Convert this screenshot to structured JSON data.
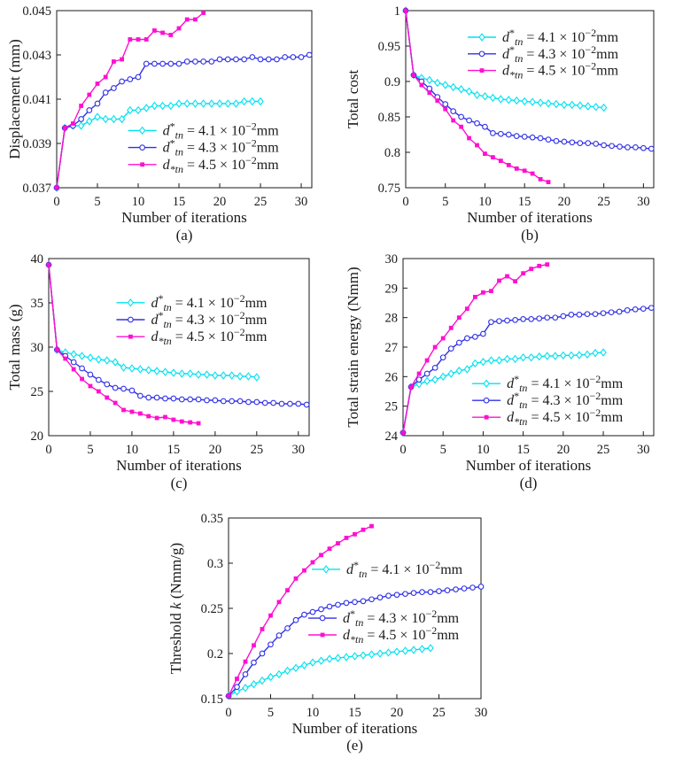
{
  "figure": {
    "background": "#ffffff",
    "axis_color": "#1a1a1a",
    "text_color": "#1a1a1a"
  },
  "series_defs": [
    {
      "name": "d*_tn = 4.1 x 10^-2 mm",
      "label_parts": [
        {
          "t": "d",
          "s": "i"
        },
        {
          "t": "*",
          "s": "sup"
        },
        {
          "t": "tn",
          "s": "sub"
        },
        {
          "t": " = 4.1 × 10"
        },
        {
          "t": "−2",
          "s": "sup"
        },
        {
          "t": "mm"
        }
      ],
      "color": "#00E2F0",
      "marker": "diamond"
    },
    {
      "name": "d*_tn = 4.3 x 10^-2 mm",
      "label_parts": [
        {
          "t": "d",
          "s": "i"
        },
        {
          "t": "*",
          "s": "sup"
        },
        {
          "t": "tn",
          "s": "sub"
        },
        {
          "t": " = 4.3 × 10"
        },
        {
          "t": "−2",
          "s": "sup"
        },
        {
          "t": "mm"
        }
      ],
      "color": "#3030E8",
      "marker": "circle"
    },
    {
      "name": "d*_tn = 4.5 x 10^-2 mm",
      "label_parts": [
        {
          "t": "d",
          "s": "i"
        },
        {
          "t": "*",
          "s": "sub"
        },
        {
          "t": "tn",
          "s": "sub"
        },
        {
          "t": " = 4.5 × 10"
        },
        {
          "t": "−2",
          "s": "sup"
        },
        {
          "t": "mm"
        }
      ],
      "color": "#FF10CF",
      "marker": "square"
    }
  ],
  "chart_data": [
    {
      "type": "line",
      "caption": "(a)",
      "xlabel": "Number of iterations",
      "ylabel": "Displacement (mm)",
      "ylabel_parts": [
        {
          "t": "Displacement (mm)"
        }
      ],
      "xlim": [
        0,
        31.3
      ],
      "ylim": [
        0.037,
        0.045
      ],
      "xticks": [
        {
          "v": 0,
          "l": "0"
        },
        {
          "v": 5,
          "l": "5"
        },
        {
          "v": 10,
          "l": "10"
        },
        {
          "v": 15,
          "l": "15"
        },
        {
          "v": 20,
          "l": "20"
        },
        {
          "v": 25,
          "l": "25"
        },
        {
          "v": 30,
          "l": "30"
        }
      ],
      "yticks": [
        {
          "v": 0.037,
          "l": "0.037"
        },
        {
          "v": 0.039,
          "l": "0.039"
        },
        {
          "v": 0.041,
          "l": "0.041"
        },
        {
          "v": 0.043,
          "l": "0.043"
        },
        {
          "v": 0.045,
          "l": "0.045"
        }
      ],
      "legend": [
        {
          "series": 0,
          "fx": 0.28,
          "fy": 0.677
        },
        {
          "series": 1,
          "fx": 0.28,
          "fy": 0.773
        },
        {
          "series": 2,
          "fx": 0.28,
          "fy": 0.869
        }
      ],
      "series": [
        {
          "def": 0,
          "values": [
            0.037,
            0.0397,
            0.0398,
            0.0398,
            0.04,
            0.0402,
            0.0401,
            0.0401,
            0.0401,
            0.0405,
            0.0405,
            0.0406,
            0.0407,
            0.0407,
            0.0407,
            0.0408,
            0.0408,
            0.0408,
            0.0408,
            0.0408,
            0.0408,
            0.0408,
            0.0408,
            0.0409,
            0.0409,
            0.0409
          ]
        },
        {
          "def": 1,
          "values": [
            0.037,
            0.0397,
            0.0398,
            0.0401,
            0.0405,
            0.0408,
            0.0413,
            0.0415,
            0.0418,
            0.0419,
            0.042,
            0.0426,
            0.0426,
            0.0426,
            0.0426,
            0.0426,
            0.0427,
            0.0427,
            0.0427,
            0.0427,
            0.0428,
            0.0428,
            0.0428,
            0.0428,
            0.0429,
            0.0428,
            0.0428,
            0.0428,
            0.0429,
            0.0429,
            0.0429,
            0.043
          ]
        },
        {
          "def": 2,
          "values": [
            0.037,
            0.0397,
            0.0399,
            0.0407,
            0.0412,
            0.0417,
            0.042,
            0.0427,
            0.0428,
            0.0437,
            0.0437,
            0.0437,
            0.0441,
            0.044,
            0.0439,
            0.0442,
            0.0446,
            0.0446,
            0.0449
          ]
        }
      ]
    },
    {
      "type": "line",
      "caption": "(b)",
      "xlabel": "Number of iterations",
      "ylabel": "Total cost",
      "ylabel_parts": [
        {
          "t": "Total cost"
        }
      ],
      "xlim": [
        0,
        31.3
      ],
      "ylim": [
        0.75,
        1.0
      ],
      "xticks": [
        {
          "v": 0,
          "l": "0"
        },
        {
          "v": 5,
          "l": "5"
        },
        {
          "v": 10,
          "l": "10"
        },
        {
          "v": 15,
          "l": "15"
        },
        {
          "v": 20,
          "l": "20"
        },
        {
          "v": 25,
          "l": "25"
        },
        {
          "v": 30,
          "l": "30"
        }
      ],
      "yticks": [
        {
          "v": 0.75,
          "l": "0.75"
        },
        {
          "v": 0.8,
          "l": "0.8"
        },
        {
          "v": 0.85,
          "l": "0.85"
        },
        {
          "v": 0.9,
          "l": "0.9"
        },
        {
          "v": 0.95,
          "l": "0.95"
        },
        {
          "v": 1.0,
          "l": "1"
        }
      ],
      "legend": [
        {
          "series": 0,
          "fx": 0.25,
          "fy": 0.15
        },
        {
          "series": 1,
          "fx": 0.25,
          "fy": 0.244
        },
        {
          "series": 2,
          "fx": 0.25,
          "fy": 0.338
        }
      ],
      "series": [
        {
          "def": 0,
          "values": [
            1.0,
            0.909,
            0.905,
            0.902,
            0.898,
            0.895,
            0.892,
            0.889,
            0.886,
            0.881,
            0.879,
            0.877,
            0.875,
            0.874,
            0.873,
            0.872,
            0.871,
            0.87,
            0.869,
            0.868,
            0.867,
            0.867,
            0.866,
            0.865,
            0.864,
            0.863
          ]
        },
        {
          "def": 1,
          "values": [
            1.0,
            0.909,
            0.9,
            0.89,
            0.878,
            0.868,
            0.858,
            0.85,
            0.845,
            0.841,
            0.836,
            0.827,
            0.826,
            0.825,
            0.823,
            0.822,
            0.821,
            0.82,
            0.818,
            0.816,
            0.815,
            0.814,
            0.813,
            0.813,
            0.812,
            0.81,
            0.809,
            0.808,
            0.807,
            0.807,
            0.806,
            0.805
          ]
        },
        {
          "def": 2,
          "values": [
            1.0,
            0.909,
            0.895,
            0.884,
            0.873,
            0.861,
            0.845,
            0.836,
            0.82,
            0.81,
            0.798,
            0.793,
            0.788,
            0.782,
            0.777,
            0.774,
            0.77,
            0.762,
            0.758
          ]
        }
      ]
    },
    {
      "type": "line",
      "caption": "(c)",
      "xlabel": "Number of iterations",
      "ylabel": "Total mass (g)",
      "ylabel_parts": [
        {
          "t": "Total mass (g)"
        }
      ],
      "xlim": [
        0,
        31.3
      ],
      "ylim": [
        20,
        40
      ],
      "xticks": [
        {
          "v": 0,
          "l": "0"
        },
        {
          "v": 5,
          "l": "5"
        },
        {
          "v": 10,
          "l": "10"
        },
        {
          "v": 15,
          "l": "15"
        },
        {
          "v": 20,
          "l": "20"
        },
        {
          "v": 25,
          "l": "25"
        },
        {
          "v": 30,
          "l": "30"
        }
      ],
      "yticks": [
        {
          "v": 20,
          "l": "20"
        },
        {
          "v": 25,
          "l": "25"
        },
        {
          "v": 30,
          "l": "30"
        },
        {
          "v": 35,
          "l": "35"
        },
        {
          "v": 40,
          "l": "40"
        }
      ],
      "legend": [
        {
          "series": 0,
          "fx": 0.26,
          "fy": 0.249
        },
        {
          "series": 1,
          "fx": 0.26,
          "fy": 0.345
        },
        {
          "series": 2,
          "fx": 0.26,
          "fy": 0.441
        }
      ],
      "series": [
        {
          "def": 0,
          "values": [
            39.3,
            29.7,
            29.4,
            29.2,
            29.0,
            28.8,
            28.6,
            28.5,
            28.3,
            27.7,
            27.6,
            27.5,
            27.4,
            27.3,
            27.2,
            27.1,
            27.0,
            27.0,
            26.9,
            26.9,
            26.8,
            26.8,
            26.8,
            26.7,
            26.7,
            26.6
          ]
        },
        {
          "def": 1,
          "values": [
            39.3,
            29.7,
            29.0,
            28.3,
            27.6,
            26.9,
            26.3,
            25.8,
            25.4,
            25.3,
            25.1,
            24.5,
            24.3,
            24.3,
            24.2,
            24.2,
            24.1,
            24.1,
            24.1,
            24.0,
            24.0,
            23.9,
            23.9,
            23.9,
            23.8,
            23.8,
            23.7,
            23.7,
            23.6,
            23.6,
            23.6,
            23.5
          ]
        },
        {
          "def": 2,
          "values": [
            39.3,
            29.7,
            28.7,
            27.5,
            26.4,
            25.6,
            25.0,
            24.3,
            23.7,
            22.9,
            22.7,
            22.5,
            22.2,
            22.0,
            22.1,
            21.8,
            21.6,
            21.5,
            21.4
          ]
        }
      ]
    },
    {
      "type": "line",
      "caption": "(d)",
      "xlabel": "Number of iterations",
      "ylabel": "Total strain energy (Nmm)",
      "ylabel_parts": [
        {
          "t": "Total strain energy (Nmm)"
        }
      ],
      "xlim": [
        0,
        31.3
      ],
      "ylim": [
        24,
        30
      ],
      "xticks": [
        {
          "v": 0,
          "l": "0"
        },
        {
          "v": 5,
          "l": "5"
        },
        {
          "v": 10,
          "l": "10"
        },
        {
          "v": 15,
          "l": "15"
        },
        {
          "v": 20,
          "l": "20"
        },
        {
          "v": 25,
          "l": "25"
        },
        {
          "v": 30,
          "l": "30"
        }
      ],
      "yticks": [
        {
          "v": 24,
          "l": "24"
        },
        {
          "v": 25,
          "l": "25"
        },
        {
          "v": 26,
          "l": "26"
        },
        {
          "v": 27,
          "l": "27"
        },
        {
          "v": 28,
          "l": "28"
        },
        {
          "v": 29,
          "l": "29"
        },
        {
          "v": 30,
          "l": "30"
        }
      ],
      "legend": [
        {
          "series": 0,
          "fx": 0.276,
          "fy": 0.706
        },
        {
          "series": 1,
          "fx": 0.276,
          "fy": 0.801
        },
        {
          "series": 2,
          "fx": 0.276,
          "fy": 0.896
        }
      ],
      "series": [
        {
          "def": 0,
          "values": [
            24.1,
            25.65,
            25.75,
            25.85,
            25.9,
            26.0,
            26.1,
            26.2,
            26.25,
            26.45,
            26.5,
            26.55,
            26.55,
            26.6,
            26.6,
            26.65,
            26.65,
            26.68,
            26.7,
            26.7,
            26.72,
            26.72,
            26.73,
            26.75,
            26.8,
            26.82
          ]
        },
        {
          "def": 1,
          "values": [
            24.1,
            25.65,
            25.9,
            26.1,
            26.3,
            26.65,
            26.95,
            27.15,
            27.3,
            27.35,
            27.45,
            27.85,
            27.88,
            27.9,
            27.92,
            27.95,
            27.95,
            27.97,
            28.0,
            28.0,
            28.05,
            28.1,
            28.1,
            28.12,
            28.12,
            28.15,
            28.18,
            28.2,
            28.25,
            28.28,
            28.3,
            28.33
          ]
        },
        {
          "def": 2,
          "values": [
            24.1,
            25.65,
            26.1,
            26.55,
            27.0,
            27.3,
            27.65,
            28.0,
            28.3,
            28.7,
            28.85,
            28.9,
            29.25,
            29.4,
            29.23,
            29.5,
            29.65,
            29.75,
            29.8
          ]
        }
      ]
    },
    {
      "type": "line",
      "caption": "(e)",
      "xlabel": "Number of iterations",
      "ylabel": "Threshold k (Nmm/g)",
      "ylabel_parts": [
        {
          "t": "Threshold "
        },
        {
          "t": "k",
          "s": "i"
        },
        {
          "t": " (Nmm/g)"
        }
      ],
      "xlim": [
        0,
        30
      ],
      "ylim": [
        0.15,
        0.35
      ],
      "xticks": [
        {
          "v": 0,
          "l": "0"
        },
        {
          "v": 5,
          "l": "5"
        },
        {
          "v": 10,
          "l": "10"
        },
        {
          "v": 15,
          "l": "15"
        },
        {
          "v": 20,
          "l": "20"
        },
        {
          "v": 25,
          "l": "25"
        },
        {
          "v": 30,
          "l": "30"
        }
      ],
      "yticks": [
        {
          "v": 0.15,
          "l": "0.15"
        },
        {
          "v": 0.2,
          "l": "0.2"
        },
        {
          "v": 0.25,
          "l": "0.25"
        },
        {
          "v": 0.3,
          "l": "0.3"
        },
        {
          "v": 0.35,
          "l": "0.35"
        }
      ],
      "legend": [
        {
          "series": 0,
          "fx": 0.33,
          "fy": 0.284
        },
        {
          "series": 1,
          "fx": 0.316,
          "fy": 0.554
        },
        {
          "series": 2,
          "fx": 0.316,
          "fy": 0.647
        }
      ],
      "series": [
        {
          "def": 0,
          "values": [
            0.153,
            0.158,
            0.162,
            0.166,
            0.17,
            0.174,
            0.177,
            0.181,
            0.184,
            0.187,
            0.19,
            0.192,
            0.194,
            0.195,
            0.196,
            0.197,
            0.198,
            0.199,
            0.2,
            0.201,
            0.202,
            0.203,
            0.204,
            0.205,
            0.206
          ]
        },
        {
          "def": 1,
          "values": [
            0.153,
            0.163,
            0.177,
            0.19,
            0.2,
            0.21,
            0.22,
            0.228,
            0.237,
            0.243,
            0.246,
            0.249,
            0.252,
            0.254,
            0.256,
            0.257,
            0.258,
            0.26,
            0.262,
            0.264,
            0.265,
            0.266,
            0.267,
            0.268,
            0.268,
            0.269,
            0.27,
            0.271,
            0.272,
            0.273,
            0.274
          ]
        },
        {
          "def": 2,
          "values": [
            0.153,
            0.172,
            0.191,
            0.209,
            0.227,
            0.242,
            0.257,
            0.27,
            0.283,
            0.292,
            0.301,
            0.309,
            0.316,
            0.322,
            0.328,
            0.332,
            0.337,
            0.341
          ]
        }
      ]
    }
  ]
}
